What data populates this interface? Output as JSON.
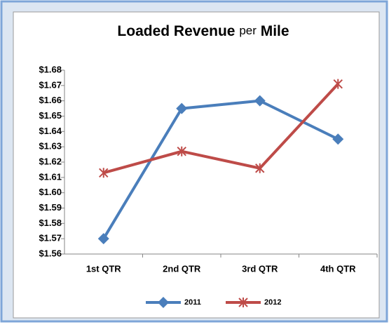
{
  "chart_data": {
    "type": "line",
    "title": [
      "Loaded Revenue",
      "per",
      "Mile"
    ],
    "categories": [
      "1st QTR",
      "2nd QTR",
      "3rd QTR",
      "4th QTR"
    ],
    "series": [
      {
        "name": "2011",
        "color": "#4a7ebb",
        "marker": "diamond",
        "values": [
          1.57,
          1.655,
          1.66,
          1.635
        ]
      },
      {
        "name": "2012",
        "color": "#be4b48",
        "marker": "star",
        "values": [
          1.613,
          1.627,
          1.616,
          1.671
        ]
      }
    ],
    "ylim": [
      1.56,
      1.68
    ],
    "yticks": [
      {
        "value": 1.56,
        "label": "$1.56"
      },
      {
        "value": 1.57,
        "label": "$1.57"
      },
      {
        "value": 1.58,
        "label": "$1.58"
      },
      {
        "value": 1.59,
        "label": "$1.59"
      },
      {
        "value": 1.6,
        "label": "$1.60"
      },
      {
        "value": 1.61,
        "label": "$1.61"
      },
      {
        "value": 1.62,
        "label": "$1.62"
      },
      {
        "value": 1.63,
        "label": "$1.63"
      },
      {
        "value": 1.64,
        "label": "$1.64"
      },
      {
        "value": 1.65,
        "label": "$1.65"
      },
      {
        "value": 1.66,
        "label": "$1.66"
      },
      {
        "value": 1.67,
        "label": "$1.67"
      },
      {
        "value": 1.68,
        "label": "$1.68"
      }
    ],
    "grid": false,
    "legend": "bottom"
  }
}
